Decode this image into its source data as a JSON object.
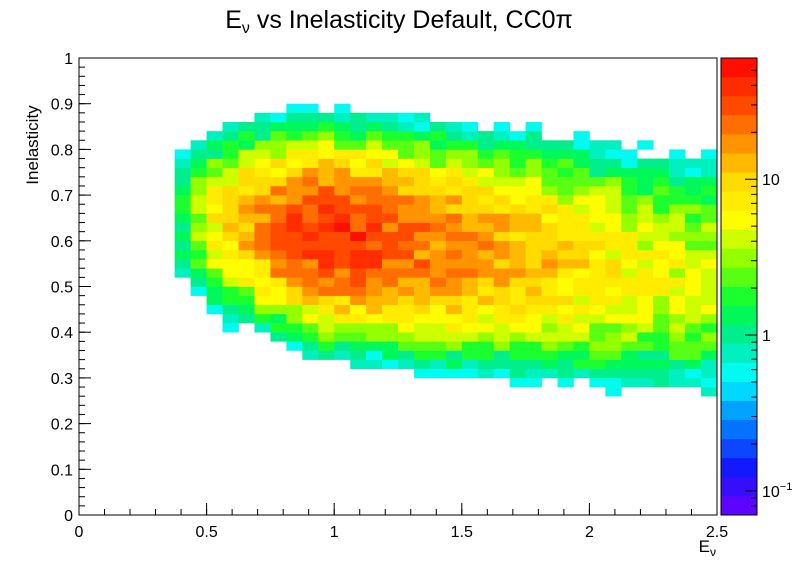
{
  "chart_data": {
    "type": "heatmap",
    "title_parts": [
      "E",
      "ν",
      " vs Inelasticity Default, CC0π"
    ],
    "xlabel_parts": [
      "E",
      "ν"
    ],
    "ylabel": "Inelasticity",
    "xlim": [
      0,
      2.5
    ],
    "ylim": [
      0,
      1
    ],
    "x_ticks": [
      "0",
      "0.5",
      "1",
      "1.5",
      "2",
      "2.5"
    ],
    "y_ticks": [
      "0",
      "0.1",
      "0.2",
      "0.3",
      "0.4",
      "0.5",
      "0.6",
      "0.7",
      "0.8",
      "0.9",
      "1"
    ],
    "colorbar": {
      "scale": "log",
      "range": [
        0.07,
        60
      ],
      "ticks": [
        {
          "value": 0.1,
          "base": "10",
          "exp": "−1"
        },
        {
          "value": 1,
          "base": "1",
          "exp": ""
        },
        {
          "value": 10,
          "base": "10",
          "exp": ""
        }
      ]
    },
    "grid": false,
    "binning": {
      "x_bins": 40,
      "x_range": [
        0,
        2.5
      ],
      "y_bins": 50,
      "y_range": [
        0,
        1
      ]
    },
    "description": "2D histogram of inelasticity vs neutrino energy; maximum density (~20-50 events per bin) at Eν ≈ 0.7-1.4 and inelasticity ≈ 0.4-0.8, falling off toward higher energy and toward low/high inelasticity"
  }
}
